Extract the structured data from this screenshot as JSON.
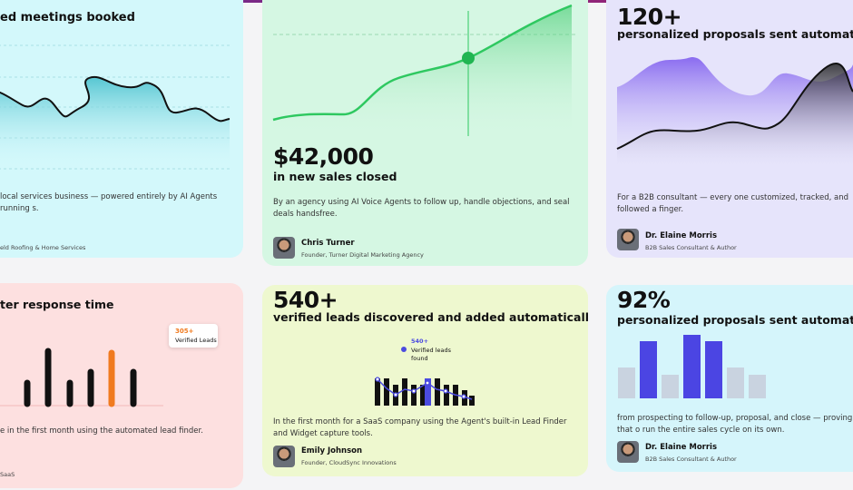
{
  "cards": [
    {
      "title": "ed meetings booked",
      "description": "local services business — powered entirely by AI Agents running s.",
      "role": "eld Roofing & Home Services"
    },
    {
      "headline": "$42,000",
      "subtitle": "in new sales closed",
      "description": "By an agency using AI Voice Agents to follow up, handle objections, and seal deals handsfree.",
      "name": "Chris Turner",
      "role": "Founder, Turner Digital Marketing Agency"
    },
    {
      "headline": "120+",
      "subtitle": "personalized proposals sent automatically",
      "description": "For a B2B consultant — every one customized, tracked, and followed a finger.",
      "name": "Dr. Elaine Morris",
      "role": "B2B Sales Consultant & Author"
    },
    {
      "title": "ter response time",
      "tooltip_value": "305+",
      "tooltip_label": "Verified Leads",
      "description": "e in the first month using the automated lead finder.",
      "role": "SaaS"
    },
    {
      "headline": "540+",
      "subtitle": "verified leads discovered and added automatically",
      "tooltip_value": "540+",
      "tooltip_label": "Verified leads found",
      "description": "In the first month for a SaaS company using the Agent's built-in Lead Finder and Widget capture tools.",
      "name": "Emily Johnson",
      "role": "Founder, CloudSync Innovations"
    },
    {
      "headline": "92%",
      "subtitle": "personalized proposals sent automatically",
      "description": "from prospecting to follow-up, proposal, and close — proving that o run the entire sales cycle on its own.",
      "name": "Dr. Elaine Morris",
      "role": "B2B Sales Consultant & Author"
    }
  ]
}
